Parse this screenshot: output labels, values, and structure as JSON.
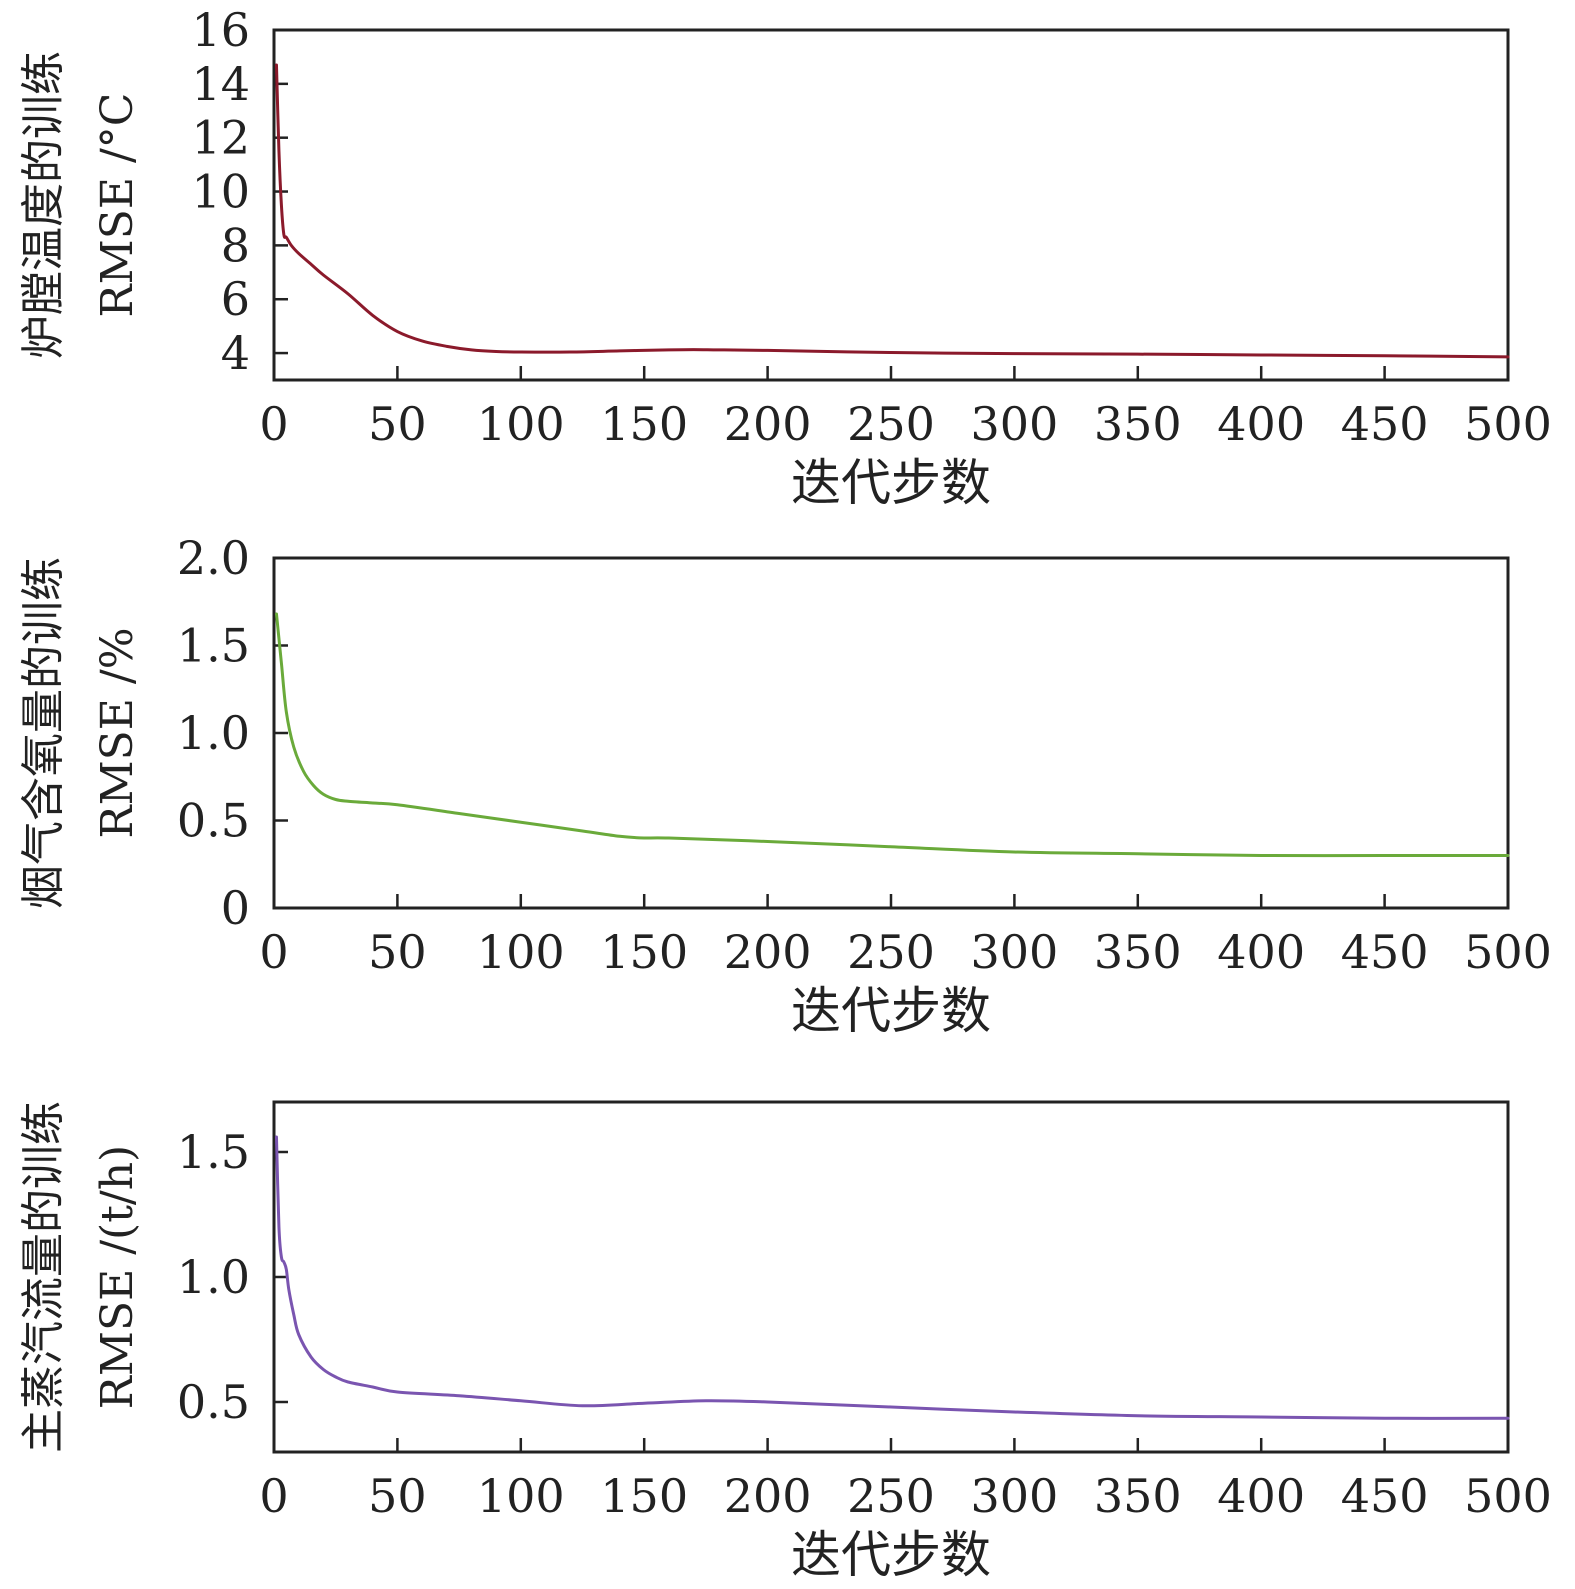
{
  "chart_data": [
    {
      "type": "line",
      "title": "",
      "xlabel": "迭代步数",
      "ylabel_lines": [
        "炉膛温度的训练",
        "RMSE /°C"
      ],
      "xlim": [
        0,
        500
      ],
      "ylim": [
        3,
        16
      ],
      "xticks": [
        0,
        50,
        100,
        150,
        200,
        250,
        300,
        350,
        400,
        450,
        500
      ],
      "yticks": [
        4,
        6,
        8,
        10,
        12,
        14,
        16
      ],
      "ytick_labels": [
        "4",
        "6",
        "8",
        "10",
        "12",
        "14",
        "16"
      ],
      "grid": false,
      "legend": "none",
      "color": "#8b1a2b",
      "series": [
        {
          "x": [
            1,
            2,
            3,
            4,
            5,
            7,
            10,
            15,
            20,
            30,
            40,
            50,
            60,
            70,
            80,
            90,
            100,
            120,
            140,
            160,
            170,
            180,
            200,
            250,
            300,
            350,
            400,
            450,
            500
          ],
          "values": [
            14.7,
            11.5,
            9.5,
            8.4,
            8.3,
            8.0,
            7.7,
            7.3,
            6.9,
            6.2,
            5.4,
            4.8,
            4.45,
            4.25,
            4.12,
            4.06,
            4.04,
            4.04,
            4.08,
            4.12,
            4.13,
            4.12,
            4.1,
            4.02,
            3.98,
            3.96,
            3.93,
            3.9,
            3.86
          ]
        }
      ]
    },
    {
      "type": "line",
      "title": "",
      "xlabel": "迭代步数",
      "ylabel_lines": [
        "烟气含氧量的训练",
        "RMSE /%"
      ],
      "xlim": [
        0,
        500
      ],
      "ylim": [
        0,
        2.0
      ],
      "xticks": [
        0,
        50,
        100,
        150,
        200,
        250,
        300,
        350,
        400,
        450,
        500
      ],
      "yticks": [
        0,
        0.5,
        1.0,
        1.5,
        2.0
      ],
      "ytick_labels": [
        "0",
        "0.5",
        "1.0",
        "1.5",
        "2.0"
      ],
      "grid": false,
      "legend": "none",
      "color": "#6aaa3a",
      "series": [
        {
          "x": [
            1,
            3,
            5,
            8,
            12,
            16,
            20,
            25,
            30,
            40,
            50,
            75,
            100,
            125,
            140,
            150,
            160,
            200,
            250,
            300,
            350,
            400,
            450,
            500
          ],
          "values": [
            1.68,
            1.4,
            1.12,
            0.92,
            0.78,
            0.7,
            0.65,
            0.62,
            0.61,
            0.6,
            0.59,
            0.54,
            0.49,
            0.44,
            0.41,
            0.4,
            0.4,
            0.38,
            0.35,
            0.32,
            0.31,
            0.3,
            0.3,
            0.3
          ]
        }
      ]
    },
    {
      "type": "line",
      "title": "",
      "xlabel": "迭代步数",
      "ylabel_lines": [
        "主蒸汽流量的训练",
        "RMSE /(t/h)"
      ],
      "xlim": [
        0,
        500
      ],
      "ylim": [
        0.3,
        1.7
      ],
      "xticks": [
        0,
        50,
        100,
        150,
        200,
        250,
        300,
        350,
        400,
        450,
        500
      ],
      "yticks": [
        0.5,
        1.0,
        1.5
      ],
      "ytick_labels": [
        "0.5",
        "1.0",
        "1.5"
      ],
      "grid": false,
      "legend": "none",
      "color": "#7a55b0",
      "series": [
        {
          "x": [
            1,
            2,
            3,
            4,
            5,
            6,
            8,
            10,
            15,
            20,
            25,
            30,
            40,
            50,
            75,
            100,
            125,
            150,
            175,
            200,
            250,
            300,
            350,
            400,
            450,
            500
          ],
          "values": [
            1.56,
            1.2,
            1.08,
            1.06,
            1.03,
            0.95,
            0.85,
            0.77,
            0.68,
            0.63,
            0.6,
            0.58,
            0.56,
            0.54,
            0.525,
            0.505,
            0.485,
            0.495,
            0.505,
            0.5,
            0.48,
            0.46,
            0.445,
            0.44,
            0.435,
            0.435
          ]
        }
      ]
    }
  ]
}
